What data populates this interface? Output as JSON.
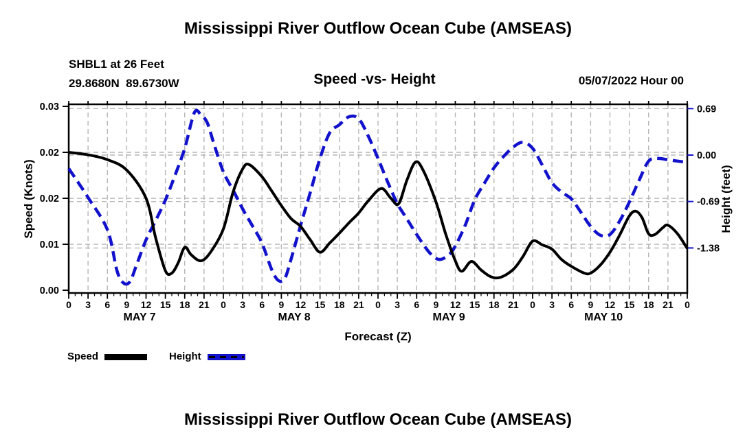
{
  "header": {
    "title": "Mississippi River Outflow Ocean Cube (AMSEAS)",
    "station_line1": "SHBL1 at 26 Feet",
    "station_line2": "29.8680N  89.6730W",
    "subtitle": "Speed -vs- Height",
    "datetime_label": "05/07/2022 Hour 00"
  },
  "legend": {
    "items": [
      {
        "label": "Speed",
        "color": "#000000",
        "style": "solid"
      },
      {
        "label": "Height",
        "color": "#1212cc",
        "style": "dashed"
      }
    ]
  },
  "footer": {
    "title": "Mississippi River Outflow Ocean Cube (AMSEAS)"
  },
  "chart_data": {
    "type": "line",
    "title": "Speed -vs- Height",
    "xlabel": "Forecast (Z)",
    "x_axis": {
      "unit": "hours from 05/07/2022 00Z",
      "range_hours": [
        0,
        96
      ],
      "major_tick_every_h": 3,
      "minor_tick_every_h": 1,
      "tick_label_cycle": [
        "0",
        "3",
        "6",
        "9",
        "12",
        "15",
        "18",
        "21"
      ],
      "day_labels": [
        "MAY 7",
        "MAY 8",
        "MAY 9",
        "MAY 10"
      ]
    },
    "left_axis": {
      "label": "Speed (Knots)",
      "min": 0,
      "max": 0.03,
      "tick_values": [
        0.03,
        0.0225,
        0.015,
        0.0075,
        0
      ],
      "tick_labels": [
        "0.03",
        "0.02",
        "0.02",
        "0.01",
        "0.00"
      ]
    },
    "right_axis": {
      "label": "Height (feet)",
      "min": -2.05,
      "max": 0.75,
      "tick_values": [
        0.69,
        0,
        -0.69,
        -1.38
      ],
      "tick_labels": [
        "0.69",
        "0.00",
        "-0.69",
        "-1.38"
      ],
      "tick_color": "#1212cc"
    },
    "grid": {
      "color": "#b5b5b5",
      "dashed": true
    },
    "series": [
      {
        "name": "Speed",
        "axis": "left",
        "color": "#000000",
        "line_style": "solid",
        "points": [
          [
            0,
            0.0225
          ],
          [
            3,
            0.0221
          ],
          [
            6,
            0.0213
          ],
          [
            9,
            0.0196
          ],
          [
            12,
            0.015
          ],
          [
            13.5,
            0.0085
          ],
          [
            15,
            0.0032
          ],
          [
            16,
            0.0028
          ],
          [
            17,
            0.0045
          ],
          [
            18,
            0.007
          ],
          [
            19,
            0.0058
          ],
          [
            20.5,
            0.0048
          ],
          [
            22,
            0.0062
          ],
          [
            24,
            0.01
          ],
          [
            25.5,
            0.016
          ],
          [
            27,
            0.0198
          ],
          [
            28,
            0.0205
          ],
          [
            30,
            0.0185
          ],
          [
            31.5,
            0.0162
          ],
          [
            33,
            0.0138
          ],
          [
            34.5,
            0.0117
          ],
          [
            36,
            0.0104
          ],
          [
            37.5,
            0.0082
          ],
          [
            39,
            0.0062
          ],
          [
            40.5,
            0.0077
          ],
          [
            42,
            0.0093
          ],
          [
            43.5,
            0.011
          ],
          [
            45,
            0.0126
          ],
          [
            46.5,
            0.0146
          ],
          [
            48.5,
            0.0166
          ],
          [
            50,
            0.015
          ],
          [
            51.2,
            0.0141
          ],
          [
            52.5,
            0.018
          ],
          [
            53.8,
            0.0209
          ],
          [
            55,
            0.0196
          ],
          [
            57,
            0.0144
          ],
          [
            58.5,
            0.0092
          ],
          [
            60,
            0.0048
          ],
          [
            61,
            0.0031
          ],
          [
            62.5,
            0.0047
          ],
          [
            64,
            0.0033
          ],
          [
            65.5,
            0.0022
          ],
          [
            67,
            0.0021
          ],
          [
            69,
            0.0034
          ],
          [
            70.5,
            0.0055
          ],
          [
            72,
            0.008
          ],
          [
            73.5,
            0.0074
          ],
          [
            75,
            0.0067
          ],
          [
            76.5,
            0.005
          ],
          [
            78,
            0.0039
          ],
          [
            80,
            0.0028
          ],
          [
            81,
            0.0028
          ],
          [
            82.5,
            0.0041
          ],
          [
            84,
            0.0062
          ],
          [
            85.5,
            0.009
          ],
          [
            87,
            0.0121
          ],
          [
            88,
            0.0129
          ],
          [
            89,
            0.0118
          ],
          [
            90,
            0.0092
          ],
          [
            91,
            0.0091
          ],
          [
            92.2,
            0.0102
          ],
          [
            93,
            0.0106
          ],
          [
            94.5,
            0.0092
          ],
          [
            96,
            0.0068
          ]
        ]
      },
      {
        "name": "Height",
        "axis": "right",
        "color": "#1212cc",
        "line_style": "dashed",
        "points": [
          [
            0,
            -0.2
          ],
          [
            3,
            -0.63
          ],
          [
            6,
            -1.11
          ],
          [
            7.5,
            -1.72
          ],
          [
            8.5,
            -1.9
          ],
          [
            9.5,
            -1.88
          ],
          [
            10.5,
            -1.64
          ],
          [
            12,
            -1.26
          ],
          [
            13.5,
            -0.97
          ],
          [
            15,
            -0.67
          ],
          [
            16.5,
            -0.3
          ],
          [
            18,
            0.1
          ],
          [
            19.5,
            0.63
          ],
          [
            20.5,
            0.6
          ],
          [
            21.5,
            0.48
          ],
          [
            22.5,
            0.18
          ],
          [
            24,
            -0.25
          ],
          [
            25.5,
            -0.52
          ],
          [
            27,
            -0.8
          ],
          [
            28.5,
            -1.05
          ],
          [
            30,
            -1.31
          ],
          [
            31.5,
            -1.7
          ],
          [
            32.5,
            -1.86
          ],
          [
            33.5,
            -1.84
          ],
          [
            34.5,
            -1.55
          ],
          [
            36,
            -1.04
          ],
          [
            37.5,
            -0.55
          ],
          [
            39,
            -0.05
          ],
          [
            40.5,
            0.33
          ],
          [
            42,
            0.45
          ],
          [
            43.5,
            0.57
          ],
          [
            45,
            0.54
          ],
          [
            46.5,
            0.28
          ],
          [
            48,
            -0.05
          ],
          [
            49.5,
            -0.4
          ],
          [
            51,
            -0.72
          ],
          [
            52.5,
            -0.95
          ],
          [
            54,
            -1.18
          ],
          [
            56,
            -1.45
          ],
          [
            57.5,
            -1.55
          ],
          [
            59,
            -1.48
          ],
          [
            60,
            -1.35
          ],
          [
            61.5,
            -1.05
          ],
          [
            63,
            -0.67
          ],
          [
            64.5,
            -0.42
          ],
          [
            66,
            -0.19
          ],
          [
            67.5,
            -0.02
          ],
          [
            69,
            0.12
          ],
          [
            70.5,
            0.19
          ],
          [
            72,
            0.1
          ],
          [
            73.5,
            -0.15
          ],
          [
            75,
            -0.41
          ],
          [
            76.5,
            -0.55
          ],
          [
            78,
            -0.65
          ],
          [
            79.5,
            -0.85
          ],
          [
            81,
            -1.06
          ],
          [
            82.5,
            -1.19
          ],
          [
            84,
            -1.18
          ],
          [
            85.5,
            -0.98
          ],
          [
            87,
            -0.7
          ],
          [
            88.5,
            -0.38
          ],
          [
            90,
            -0.09
          ],
          [
            91.5,
            -0.05
          ],
          [
            93,
            -0.07
          ],
          [
            96,
            -0.11
          ]
        ]
      }
    ]
  }
}
